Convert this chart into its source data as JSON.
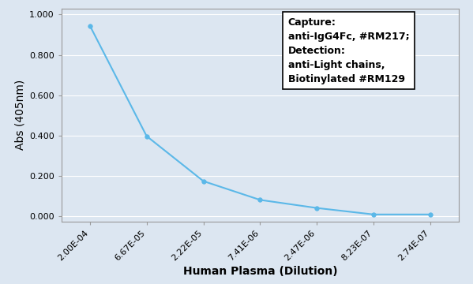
{
  "x_labels": [
    "2.00E-04",
    "6.67E-05",
    "2.22E-05",
    "7.41E-06",
    "2.47E-06",
    "8.23E-07",
    "2.74E-07"
  ],
  "x_values": [
    0.0002,
    6.67e-05,
    2.22e-05,
    7.41e-06,
    2.47e-06,
    8.23e-07,
    2.74e-07
  ],
  "y_values": [
    0.945,
    0.398,
    0.175,
    0.082,
    0.042,
    0.01,
    0.01
  ],
  "line_color": "#5BB8E8",
  "marker_color": "#5BB8E8",
  "xlabel": "Human Plasma (Dilution)",
  "ylabel": "Abs (405nm)",
  "ylim": [
    -0.025,
    1.03
  ],
  "yticks": [
    0.0,
    0.2,
    0.4,
    0.6,
    0.8,
    1.0
  ],
  "ytick_labels": [
    "0.000",
    "0.200",
    "0.400",
    "0.600",
    "0.800",
    "1.000"
  ],
  "legend_lines": [
    "Capture:",
    "anti-IgG4Fc, #RM217;",
    "Detection:",
    "anti-Light chains,",
    "Biotinylated #RM129"
  ],
  "background_color": "#dce6f1",
  "plot_bg_color": "#dce6f1",
  "grid_color": "#aabbcc",
  "axis_fontsize": 10,
  "tick_fontsize": 8,
  "legend_fontsize": 9
}
